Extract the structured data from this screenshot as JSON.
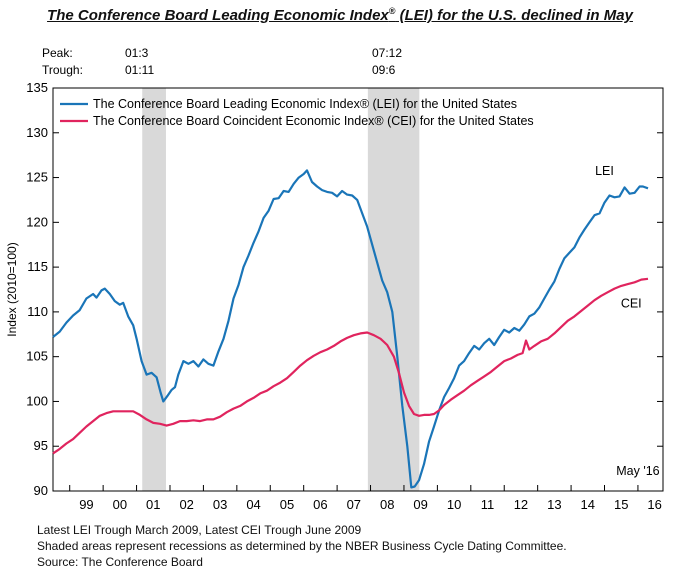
{
  "title": {
    "main": "The Conference Board Leading Economic Index",
    "reg": "®",
    "rest": " (LEI) for the U.S. declined in May"
  },
  "peaks": {
    "peak_label": "Peak:",
    "trough_label": "Trough:",
    "recessions": [
      {
        "peak": "01:3",
        "trough": "01:11"
      },
      {
        "peak": "07:12",
        "trough": "09:6"
      }
    ]
  },
  "footnotes": [
    "Latest LEI Trough March 2009, Latest CEI Trough June 2009",
    "Shaded areas represent recessions as determined by the NBER Business Cycle Dating Committee.",
    "Source:  The Conference Board"
  ],
  "chart_data": {
    "type": "line",
    "ylabel": "Index (2010=100)",
    "ylim": [
      90,
      135
    ],
    "yticks": [
      90,
      95,
      100,
      105,
      110,
      115,
      120,
      125,
      130,
      135
    ],
    "xlim": [
      1998.5,
      2016.75
    ],
    "xticks": [
      {
        "label": "99",
        "x": 1999.5
      },
      {
        "label": "00",
        "x": 2000.5
      },
      {
        "label": "01",
        "x": 2001.5
      },
      {
        "label": "02",
        "x": 2002.5
      },
      {
        "label": "03",
        "x": 2003.5
      },
      {
        "label": "04",
        "x": 2004.5
      },
      {
        "label": "05",
        "x": 2005.5
      },
      {
        "label": "06",
        "x": 2006.5
      },
      {
        "label": "07",
        "x": 2007.5
      },
      {
        "label": "08",
        "x": 2008.5
      },
      {
        "label": "09",
        "x": 2009.5
      },
      {
        "label": "10",
        "x": 2010.5
      },
      {
        "label": "11",
        "x": 2011.5
      },
      {
        "label": "12",
        "x": 2012.5
      },
      {
        "label": "13",
        "x": 2013.5
      },
      {
        "label": "14",
        "x": 2014.5
      },
      {
        "label": "15",
        "x": 2015.5
      },
      {
        "label": "16",
        "x": 2016.5
      }
    ],
    "recession_bands": [
      {
        "start": 2001.17,
        "end": 2001.88
      },
      {
        "start": 2007.92,
        "end": 2009.46
      }
    ],
    "legend_position": "top-left",
    "annotations": [
      {
        "text": "LEI",
        "x": 2015.0,
        "y": 125.3
      },
      {
        "text": "CEI",
        "x": 2015.8,
        "y": 110.5
      },
      {
        "text": "May '16",
        "x": 2016.0,
        "y": 91.8
      }
    ],
    "series": [
      {
        "name": "The Conference Board Leading Economic Index® (LEI) for the United States",
        "label": "LEI",
        "color": "#1a75b8",
        "points": [
          [
            1998.5,
            107.2
          ],
          [
            1998.7,
            107.8
          ],
          [
            1998.9,
            108.8
          ],
          [
            1999.1,
            109.6
          ],
          [
            1999.3,
            110.2
          ],
          [
            1999.5,
            111.5
          ],
          [
            1999.7,
            112.0
          ],
          [
            1999.8,
            111.6
          ],
          [
            1999.95,
            112.4
          ],
          [
            2000.05,
            112.6
          ],
          [
            2000.2,
            112.0
          ],
          [
            2000.35,
            111.2
          ],
          [
            2000.5,
            110.8
          ],
          [
            2000.6,
            111.0
          ],
          [
            2000.75,
            109.5
          ],
          [
            2000.9,
            108.5
          ],
          [
            2001.0,
            107.0
          ],
          [
            2001.15,
            104.5
          ],
          [
            2001.3,
            103.0
          ],
          [
            2001.45,
            103.2
          ],
          [
            2001.6,
            102.7
          ],
          [
            2001.72,
            101.0
          ],
          [
            2001.8,
            100.0
          ],
          [
            2001.92,
            100.6
          ],
          [
            2002.05,
            101.3
          ],
          [
            2002.15,
            101.6
          ],
          [
            2002.25,
            103.0
          ],
          [
            2002.4,
            104.5
          ],
          [
            2002.55,
            104.2
          ],
          [
            2002.7,
            104.5
          ],
          [
            2002.85,
            103.9
          ],
          [
            2003.0,
            104.7
          ],
          [
            2003.15,
            104.2
          ],
          [
            2003.3,
            104.0
          ],
          [
            2003.45,
            105.6
          ],
          [
            2003.6,
            107.0
          ],
          [
            2003.75,
            109.0
          ],
          [
            2003.9,
            111.5
          ],
          [
            2004.05,
            113.0
          ],
          [
            2004.2,
            115.0
          ],
          [
            2004.35,
            116.3
          ],
          [
            2004.5,
            117.7
          ],
          [
            2004.65,
            119.0
          ],
          [
            2004.8,
            120.5
          ],
          [
            2004.95,
            121.3
          ],
          [
            2005.1,
            122.6
          ],
          [
            2005.25,
            122.7
          ],
          [
            2005.4,
            123.5
          ],
          [
            2005.55,
            123.4
          ],
          [
            2005.7,
            124.3
          ],
          [
            2005.85,
            125.0
          ],
          [
            2006.0,
            125.4
          ],
          [
            2006.1,
            125.8
          ],
          [
            2006.25,
            124.5
          ],
          [
            2006.4,
            124.0
          ],
          [
            2006.55,
            123.6
          ],
          [
            2006.7,
            123.4
          ],
          [
            2006.85,
            123.3
          ],
          [
            2007.0,
            122.9
          ],
          [
            2007.15,
            123.5
          ],
          [
            2007.3,
            123.1
          ],
          [
            2007.45,
            123.0
          ],
          [
            2007.6,
            122.5
          ],
          [
            2007.75,
            121.0
          ],
          [
            2007.9,
            119.5
          ],
          [
            2008.05,
            117.5
          ],
          [
            2008.2,
            115.5
          ],
          [
            2008.35,
            113.5
          ],
          [
            2008.5,
            112.2
          ],
          [
            2008.65,
            110.0
          ],
          [
            2008.8,
            105.0
          ],
          [
            2008.95,
            99.5
          ],
          [
            2009.1,
            95.0
          ],
          [
            2009.22,
            90.4
          ],
          [
            2009.32,
            90.5
          ],
          [
            2009.45,
            91.2
          ],
          [
            2009.6,
            93.0
          ],
          [
            2009.75,
            95.5
          ],
          [
            2009.9,
            97.2
          ],
          [
            2010.05,
            99.0
          ],
          [
            2010.2,
            100.5
          ],
          [
            2010.35,
            101.5
          ],
          [
            2010.5,
            102.6
          ],
          [
            2010.65,
            104.0
          ],
          [
            2010.8,
            104.5
          ],
          [
            2010.95,
            105.4
          ],
          [
            2011.1,
            106.2
          ],
          [
            2011.25,
            105.8
          ],
          [
            2011.4,
            106.5
          ],
          [
            2011.55,
            107.0
          ],
          [
            2011.7,
            106.3
          ],
          [
            2011.85,
            107.2
          ],
          [
            2012.0,
            108.0
          ],
          [
            2012.15,
            107.7
          ],
          [
            2012.3,
            108.2
          ],
          [
            2012.45,
            107.9
          ],
          [
            2012.6,
            108.6
          ],
          [
            2012.75,
            109.5
          ],
          [
            2012.9,
            109.8
          ],
          [
            2013.05,
            110.5
          ],
          [
            2013.2,
            111.5
          ],
          [
            2013.35,
            112.5
          ],
          [
            2013.5,
            113.4
          ],
          [
            2013.65,
            114.8
          ],
          [
            2013.8,
            116.0
          ],
          [
            2013.95,
            116.6
          ],
          [
            2014.1,
            117.2
          ],
          [
            2014.25,
            118.3
          ],
          [
            2014.4,
            119.2
          ],
          [
            2014.55,
            120.0
          ],
          [
            2014.7,
            120.8
          ],
          [
            2014.85,
            121.0
          ],
          [
            2015.0,
            122.2
          ],
          [
            2015.15,
            123.0
          ],
          [
            2015.3,
            122.8
          ],
          [
            2015.45,
            122.9
          ],
          [
            2015.6,
            123.9
          ],
          [
            2015.75,
            123.2
          ],
          [
            2015.9,
            123.3
          ],
          [
            2016.05,
            124.0
          ],
          [
            2016.15,
            124.0
          ],
          [
            2016.3,
            123.8
          ]
        ]
      },
      {
        "name": "The Conference Board Coincident Economic Index® (CEI) for the United States",
        "label": "CEI",
        "color": "#e0245e",
        "points": [
          [
            1998.5,
            94.2
          ],
          [
            1998.7,
            94.7
          ],
          [
            1998.9,
            95.3
          ],
          [
            1999.1,
            95.8
          ],
          [
            1999.3,
            96.5
          ],
          [
            1999.5,
            97.2
          ],
          [
            1999.7,
            97.8
          ],
          [
            1999.9,
            98.4
          ],
          [
            2000.1,
            98.7
          ],
          [
            2000.3,
            98.9
          ],
          [
            2000.5,
            98.9
          ],
          [
            2000.7,
            98.9
          ],
          [
            2000.9,
            98.9
          ],
          [
            2001.1,
            98.5
          ],
          [
            2001.3,
            98.0
          ],
          [
            2001.5,
            97.6
          ],
          [
            2001.7,
            97.5
          ],
          [
            2001.9,
            97.3
          ],
          [
            2002.1,
            97.5
          ],
          [
            2002.3,
            97.8
          ],
          [
            2002.5,
            97.8
          ],
          [
            2002.7,
            97.9
          ],
          [
            2002.9,
            97.8
          ],
          [
            2003.1,
            98.0
          ],
          [
            2003.3,
            98.0
          ],
          [
            2003.5,
            98.3
          ],
          [
            2003.7,
            98.8
          ],
          [
            2003.9,
            99.2
          ],
          [
            2004.1,
            99.5
          ],
          [
            2004.3,
            100.0
          ],
          [
            2004.5,
            100.4
          ],
          [
            2004.7,
            100.9
          ],
          [
            2004.9,
            101.2
          ],
          [
            2005.1,
            101.7
          ],
          [
            2005.3,
            102.1
          ],
          [
            2005.5,
            102.6
          ],
          [
            2005.7,
            103.3
          ],
          [
            2005.9,
            104.0
          ],
          [
            2006.1,
            104.6
          ],
          [
            2006.3,
            105.1
          ],
          [
            2006.5,
            105.5
          ],
          [
            2006.7,
            105.8
          ],
          [
            2006.9,
            106.2
          ],
          [
            2007.1,
            106.7
          ],
          [
            2007.3,
            107.1
          ],
          [
            2007.5,
            107.4
          ],
          [
            2007.7,
            107.6
          ],
          [
            2007.9,
            107.7
          ],
          [
            2008.1,
            107.4
          ],
          [
            2008.3,
            107.0
          ],
          [
            2008.5,
            106.3
          ],
          [
            2008.7,
            105.0
          ],
          [
            2008.85,
            103.2
          ],
          [
            2009.0,
            101.0
          ],
          [
            2009.15,
            99.5
          ],
          [
            2009.3,
            98.6
          ],
          [
            2009.45,
            98.4
          ],
          [
            2009.6,
            98.5
          ],
          [
            2009.75,
            98.5
          ],
          [
            2009.9,
            98.6
          ],
          [
            2010.05,
            99.0
          ],
          [
            2010.2,
            99.6
          ],
          [
            2010.4,
            100.2
          ],
          [
            2010.6,
            100.7
          ],
          [
            2010.8,
            101.2
          ],
          [
            2011.0,
            101.8
          ],
          [
            2011.2,
            102.3
          ],
          [
            2011.4,
            102.8
          ],
          [
            2011.6,
            103.3
          ],
          [
            2011.8,
            103.9
          ],
          [
            2012.0,
            104.5
          ],
          [
            2012.2,
            104.8
          ],
          [
            2012.4,
            105.2
          ],
          [
            2012.55,
            105.4
          ],
          [
            2012.65,
            106.8
          ],
          [
            2012.75,
            105.8
          ],
          [
            2012.9,
            106.2
          ],
          [
            2013.1,
            106.7
          ],
          [
            2013.3,
            107.0
          ],
          [
            2013.5,
            107.6
          ],
          [
            2013.7,
            108.3
          ],
          [
            2013.9,
            109.0
          ],
          [
            2014.1,
            109.5
          ],
          [
            2014.3,
            110.1
          ],
          [
            2014.5,
            110.7
          ],
          [
            2014.7,
            111.3
          ],
          [
            2014.9,
            111.8
          ],
          [
            2015.1,
            112.2
          ],
          [
            2015.3,
            112.6
          ],
          [
            2015.5,
            112.9
          ],
          [
            2015.7,
            113.1
          ],
          [
            2015.9,
            113.3
          ],
          [
            2016.1,
            113.6
          ],
          [
            2016.3,
            113.7
          ]
        ]
      }
    ]
  }
}
